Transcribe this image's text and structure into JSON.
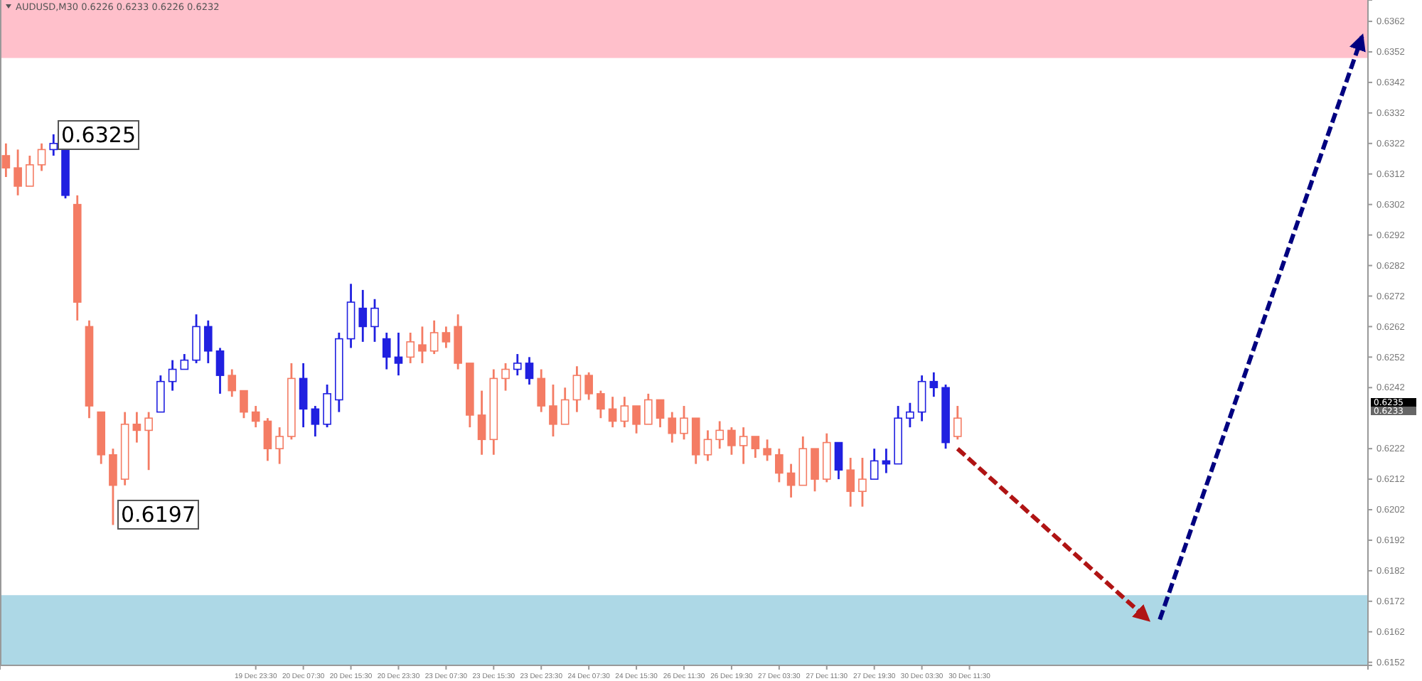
{
  "chart_data": {
    "type": "candlestick",
    "categories": [
      null,
      null,
      null,
      null,
      null,
      null,
      null,
      null,
      null,
      null,
      null,
      null,
      null,
      null,
      null,
      null,
      null,
      null,
      null,
      null,
      null,
      "19 Dec 23:30",
      null,
      null,
      null,
      "20 Dec 07:30",
      null,
      null,
      null,
      "20 Dec 15:30",
      null,
      null,
      null,
      "20 Dec 23:30",
      null,
      null,
      null,
      "23 Dec 07:30",
      null,
      null,
      null,
      "23 Dec 15:30",
      null,
      null,
      null,
      "23 Dec 23:30",
      null,
      null,
      null,
      "24 Dec 07:30",
      null,
      null,
      null,
      "24 Dec 15:30",
      null,
      null,
      null,
      "26 Dec 11:30",
      null,
      null,
      null,
      "26 Dec 19:30",
      null,
      null,
      null,
      "27 Dec 03:30",
      null,
      null,
      null,
      "27 Dec 11:30",
      null,
      null,
      null,
      "27 Dec 19:30",
      null,
      null,
      null,
      "30 Dec 03:30",
      null,
      null,
      null,
      "30 Dec 11:30",
      null,
      null,
      null,
      null,
      null,
      null,
      null,
      null,
      null,
      null,
      null,
      null,
      null,
      null,
      null,
      null,
      null,
      null,
      null,
      null,
      null,
      null,
      null,
      null,
      null,
      null,
      null,
      null,
      null,
      null,
      null,
      null,
      null
    ],
    "ohlc": [
      [
        0.6318,
        0.6322,
        0.6311,
        0.6314
      ],
      [
        0.6314,
        0.632,
        0.6305,
        0.6308
      ],
      [
        0.6308,
        0.6318,
        0.6308,
        0.6315
      ],
      [
        0.6315,
        0.6322,
        0.6313,
        0.632
      ],
      [
        0.632,
        0.6325,
        0.6318,
        0.6322
      ],
      [
        0.632,
        0.6321,
        0.6304,
        0.6305
      ],
      [
        0.6302,
        0.6305,
        0.6264,
        0.627
      ],
      [
        0.6262,
        0.6264,
        0.6232,
        0.6236
      ],
      [
        0.6234,
        0.6234,
        0.6217,
        0.622
      ],
      [
        0.622,
        0.6222,
        0.6197,
        0.621
      ],
      [
        0.6212,
        0.6234,
        0.621,
        0.623
      ],
      [
        0.623,
        0.6234,
        0.6224,
        0.6228
      ],
      [
        0.6228,
        0.6234,
        0.6215,
        0.6232
      ],
      [
        0.6234,
        0.6246,
        0.6234,
        0.6244
      ],
      [
        0.6244,
        0.6251,
        0.6241,
        0.6248
      ],
      [
        0.6248,
        0.6253,
        0.6248,
        0.6251
      ],
      [
        0.6251,
        0.6266,
        0.625,
        0.6262
      ],
      [
        0.6262,
        0.6264,
        0.625,
        0.6254
      ],
      [
        0.6254,
        0.6255,
        0.624,
        0.6246
      ],
      [
        0.6246,
        0.6248,
        0.6239,
        0.6241
      ],
      [
        0.6241,
        0.6241,
        0.6232,
        0.6234
      ],
      [
        0.6234,
        0.6236,
        0.6229,
        0.6231
      ],
      [
        0.6231,
        0.6232,
        0.6218,
        0.6222
      ],
      [
        0.6222,
        0.6229,
        0.6217,
        0.6226
      ],
      [
        0.6226,
        0.625,
        0.6225,
        0.6245
      ],
      [
        0.6245,
        0.625,
        0.6229,
        0.6235
      ],
      [
        0.6235,
        0.6236,
        0.6226,
        0.623
      ],
      [
        0.623,
        0.6243,
        0.6229,
        0.624
      ],
      [
        0.6238,
        0.626,
        0.6234,
        0.6258
      ],
      [
        0.6258,
        0.6276,
        0.6255,
        0.627
      ],
      [
        0.6268,
        0.6274,
        0.6257,
        0.6262
      ],
      [
        0.6262,
        0.6271,
        0.6257,
        0.6268
      ],
      [
        0.6258,
        0.626,
        0.6248,
        0.6252
      ],
      [
        0.6252,
        0.626,
        0.6246,
        0.625
      ],
      [
        0.6252,
        0.626,
        0.625,
        0.6257
      ],
      [
        0.6256,
        0.6262,
        0.625,
        0.6254
      ],
      [
        0.6254,
        0.6264,
        0.6253,
        0.626
      ],
      [
        0.626,
        0.6262,
        0.6255,
        0.6257
      ],
      [
        0.6262,
        0.6266,
        0.6248,
        0.625
      ],
      [
        0.625,
        0.625,
        0.6229,
        0.6233
      ],
      [
        0.6233,
        0.6241,
        0.622,
        0.6225
      ],
      [
        0.6225,
        0.6248,
        0.622,
        0.6245
      ],
      [
        0.6245,
        0.625,
        0.6241,
        0.6248
      ],
      [
        0.6248,
        0.6253,
        0.6246,
        0.625
      ],
      [
        0.625,
        0.6252,
        0.6243,
        0.6245
      ],
      [
        0.6245,
        0.6248,
        0.6234,
        0.6236
      ],
      [
        0.6236,
        0.6243,
        0.6226,
        0.623
      ],
      [
        0.623,
        0.6242,
        0.623,
        0.6238
      ],
      [
        0.6238,
        0.6249,
        0.6234,
        0.6246
      ],
      [
        0.6246,
        0.6247,
        0.6238,
        0.624
      ],
      [
        0.624,
        0.6241,
        0.6232,
        0.6235
      ],
      [
        0.6235,
        0.6239,
        0.6229,
        0.6231
      ],
      [
        0.6231,
        0.6239,
        0.6229,
        0.6236
      ],
      [
        0.6236,
        0.6236,
        0.6227,
        0.623
      ],
      [
        0.623,
        0.624,
        0.623,
        0.6238
      ],
      [
        0.6238,
        0.6238,
        0.6229,
        0.6232
      ],
      [
        0.6232,
        0.6234,
        0.6224,
        0.6227
      ],
      [
        0.6227,
        0.6236,
        0.6225,
        0.6232
      ],
      [
        0.6232,
        0.6232,
        0.6217,
        0.622
      ],
      [
        0.622,
        0.6228,
        0.6218,
        0.6225
      ],
      [
        0.6225,
        0.6231,
        0.6222,
        0.6228
      ],
      [
        0.6228,
        0.6229,
        0.622,
        0.6223
      ],
      [
        0.6223,
        0.6229,
        0.6217,
        0.6226
      ],
      [
        0.6226,
        0.6226,
        0.6219,
        0.6222
      ],
      [
        0.6222,
        0.6225,
        0.6218,
        0.622
      ],
      [
        0.622,
        0.6222,
        0.6211,
        0.6214
      ],
      [
        0.6214,
        0.6217,
        0.6206,
        0.621
      ],
      [
        0.621,
        0.6226,
        0.621,
        0.6222
      ],
      [
        0.6222,
        0.6222,
        0.6208,
        0.6212
      ],
      [
        0.6212,
        0.6227,
        0.6211,
        0.6224
      ],
      [
        0.6224,
        0.6224,
        0.6212,
        0.6215
      ],
      [
        0.6215,
        0.6219,
        0.6203,
        0.6208
      ],
      [
        0.6208,
        0.6219,
        0.6203,
        0.6212
      ],
      [
        0.6212,
        0.6222,
        0.6212,
        0.6218
      ],
      [
        0.6218,
        0.6222,
        0.6214,
        0.6217
      ],
      [
        0.6217,
        0.6236,
        0.6217,
        0.6232
      ],
      [
        0.6232,
        0.6237,
        0.6229,
        0.6234
      ],
      [
        0.6234,
        0.6246,
        0.6231,
        0.6244
      ],
      [
        0.6244,
        0.6247,
        0.6239,
        0.6242
      ],
      [
        0.6242,
        0.6243,
        0.6222,
        0.6224
      ],
      [
        0.6226,
        0.6236,
        0.6225,
        0.6232
      ],
      null,
      null,
      null,
      null,
      null,
      null,
      null,
      null,
      null,
      null,
      null,
      null,
      null,
      null,
      null,
      null,
      null,
      null,
      null,
      null,
      null,
      null,
      null,
      null,
      null,
      null,
      null,
      null,
      null,
      null,
      null,
      null,
      null,
      null
    ],
    "colors": [
      "#f47c64",
      "#f47c64",
      "#f47c64",
      "#f47c64",
      "#2020e0",
      "#2020e0",
      "#f47c64",
      "#f47c64",
      "#f47c64",
      "#f47c64",
      "#f47c64",
      "#f47c64",
      "#f47c64",
      "#2020e0",
      "#2020e0",
      "#2020e0",
      "#2020e0",
      "#2020e0",
      "#2020e0",
      "#f47c64",
      "#f47c64",
      "#f47c64",
      "#f47c64",
      "#f47c64",
      "#f47c64",
      "#2020e0",
      "#2020e0",
      "#2020e0",
      "#2020e0",
      "#2020e0",
      "#2020e0",
      "#2020e0",
      "#2020e0",
      "#2020e0",
      "#f47c64",
      "#f47c64",
      "#f47c64",
      "#f47c64",
      "#f47c64",
      "#f47c64",
      "#f47c64",
      "#f47c64",
      "#f47c64",
      "#2020e0",
      "#2020e0",
      "#f47c64",
      "#f47c64",
      "#f47c64",
      "#f47c64",
      "#f47c64",
      "#f47c64",
      "#f47c64",
      "#f47c64",
      "#f47c64",
      "#f47c64",
      "#f47c64",
      "#f47c64",
      "#f47c64",
      "#f47c64",
      "#f47c64",
      "#f47c64",
      "#f47c64",
      "#f47c64",
      "#f47c64",
      "#f47c64",
      "#f47c64",
      "#f47c64",
      "#f47c64",
      "#f47c64",
      "#f47c64",
      "#2020e0",
      "#f47c64",
      "#f47c64",
      "#2020e0",
      "#2020e0",
      "#2020e0",
      "#2020e0",
      "#2020e0",
      "#2020e0",
      "#2020e0",
      "#f47c64",
      null,
      null,
      null,
      null,
      null,
      null,
      null,
      null,
      null,
      null,
      null,
      null,
      null,
      null,
      null,
      null,
      null,
      null,
      null,
      null,
      null,
      null,
      null,
      null,
      null,
      null,
      null,
      null,
      null,
      null,
      null,
      null,
      null,
      null
    ],
    "series": [
      {
        "type": "line",
        "color": "#b01414",
        "line_style": "dashed",
        "values": [
          null,
          null,
          null,
          null,
          null,
          null,
          null,
          null,
          null,
          null,
          null,
          null,
          null,
          null,
          null,
          null,
          null,
          null,
          null,
          null,
          null,
          null,
          null,
          null,
          null,
          null,
          null,
          null,
          null,
          null,
          null,
          null,
          null,
          null,
          null,
          null,
          null,
          null,
          null,
          null,
          null,
          null,
          null,
          null,
          null,
          null,
          null,
          null,
          null,
          null,
          null,
          null,
          null,
          null,
          null,
          null,
          null,
          null,
          null,
          null,
          null,
          null,
          null,
          null,
          null,
          null,
          null,
          null,
          null,
          null,
          null,
          null,
          null,
          null,
          null,
          null,
          null,
          null,
          null,
          null,
          0.6222,
          null,
          null,
          null,
          null,
          null,
          null,
          null,
          null,
          null,
          null,
          null,
          null,
          null,
          null,
          null,
          0.6166,
          null,
          null,
          null,
          null,
          null,
          null,
          null,
          null,
          null,
          null,
          null,
          null,
          null,
          null,
          null,
          null,
          null,
          null
        ]
      },
      {
        "type": "line",
        "color": "#000080",
        "line_style": "dashed",
        "values": [
          null,
          null,
          null,
          null,
          null,
          null,
          null,
          null,
          null,
          null,
          null,
          null,
          null,
          null,
          null,
          null,
          null,
          null,
          null,
          null,
          null,
          null,
          null,
          null,
          null,
          null,
          null,
          null,
          null,
          null,
          null,
          null,
          null,
          null,
          null,
          null,
          null,
          null,
          null,
          null,
          null,
          null,
          null,
          null,
          null,
          null,
          null,
          null,
          null,
          null,
          null,
          null,
          null,
          null,
          null,
          null,
          null,
          null,
          null,
          null,
          null,
          null,
          null,
          null,
          null,
          null,
          null,
          null,
          null,
          null,
          null,
          null,
          null,
          null,
          null,
          null,
          null,
          null,
          null,
          null,
          null,
          null,
          null,
          null,
          null,
          null,
          null,
          null,
          null,
          null,
          null,
          null,
          null,
          null,
          null,
          null,
          null,
          0.6166,
          null,
          null,
          null,
          null,
          null,
          null,
          null,
          null,
          null,
          null,
          null,
          null,
          null,
          null,
          null,
          null,
          0.6357
        ]
      }
    ],
    "ylim": [
      0.6151,
      0.6369
    ],
    "yticks": [
      0.6152,
      0.6162,
      0.6172,
      0.6182,
      0.6192,
      0.6202,
      0.6212,
      0.6222,
      0.6242,
      0.6252,
      0.6262,
      0.6272,
      0.6282,
      0.6292,
      0.6302,
      0.6312,
      0.6322,
      0.6332,
      0.6342,
      0.6352,
      0.6362
    ],
    "bands": [
      {
        "axis": "y",
        "from": 0.635,
        "to": 0.6369,
        "color": "#ffc0cb"
      },
      {
        "axis": "y",
        "from": 0.6151,
        "to": 0.6174,
        "color": "#add8e6"
      }
    ],
    "annotations": [
      "AUDUSD,M30  0.6226 0.6233 0.6226 0.6232",
      "0.6325",
      "0.6197",
      "0.6235",
      "0.6233"
    ]
  }
}
